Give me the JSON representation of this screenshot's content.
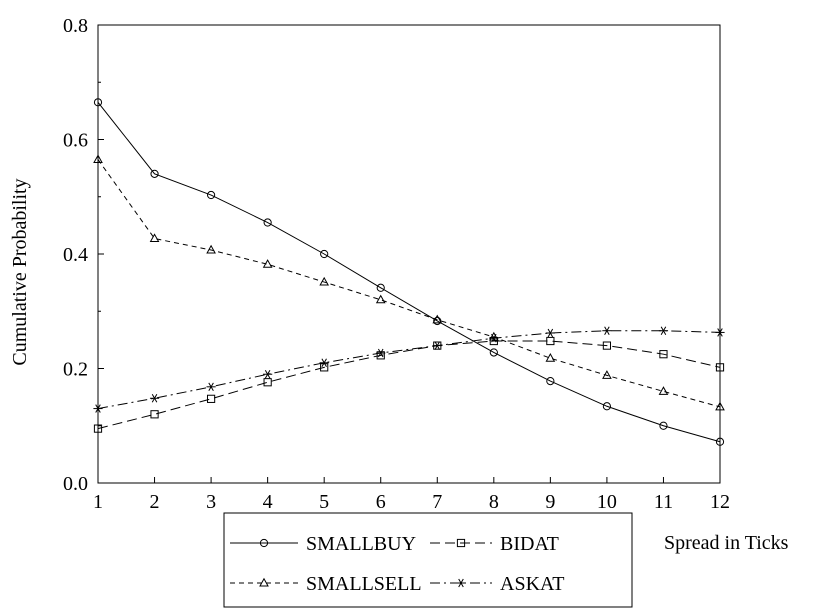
{
  "chart_data": {
    "type": "line",
    "title": "",
    "xlabel": "Spread in Ticks",
    "ylabel": "Cumulative Probability",
    "x": [
      1,
      2,
      3,
      4,
      5,
      6,
      7,
      8,
      9,
      10,
      11,
      12
    ],
    "xlim": [
      1,
      12
    ],
    "ylim": [
      0,
      0.8
    ],
    "x_ticks": [
      "1",
      "2",
      "3",
      "4",
      "5",
      "6",
      "7",
      "8",
      "9",
      "10",
      "11",
      "12"
    ],
    "y_ticks": [
      {
        "value": 0.0,
        "label": "0.0"
      },
      {
        "value": 0.2,
        "label": "0.2"
      },
      {
        "value": 0.4,
        "label": "0.4"
      },
      {
        "value": 0.6,
        "label": "0.6"
      },
      {
        "value": 0.8,
        "label": "0.8"
      }
    ],
    "grid": false,
    "legend_position": "bottom-center",
    "series": [
      {
        "name": "SMALLBUY",
        "marker": "circle",
        "dash": "solid",
        "values": [
          0.665,
          0.54,
          0.503,
          0.455,
          0.4,
          0.341,
          0.283,
          0.228,
          0.178,
          0.134,
          0.1,
          0.072
        ]
      },
      {
        "name": "BIDAT",
        "marker": "square",
        "dash": "dashed",
        "values": [
          0.095,
          0.12,
          0.147,
          0.176,
          0.202,
          0.223,
          0.24,
          0.248,
          0.248,
          0.24,
          0.225,
          0.202
        ]
      },
      {
        "name": "SMALLSELL",
        "marker": "triangle",
        "dash": "short-dashed",
        "values": [
          0.565,
          0.427,
          0.407,
          0.382,
          0.351,
          0.32,
          0.285,
          0.255,
          0.218,
          0.188,
          0.16,
          0.133
        ]
      },
      {
        "name": "ASKAT",
        "marker": "star",
        "dash": "dash-dot",
        "values": [
          0.13,
          0.148,
          0.168,
          0.19,
          0.21,
          0.227,
          0.24,
          0.253,
          0.262,
          0.266,
          0.266,
          0.263
        ]
      }
    ]
  }
}
